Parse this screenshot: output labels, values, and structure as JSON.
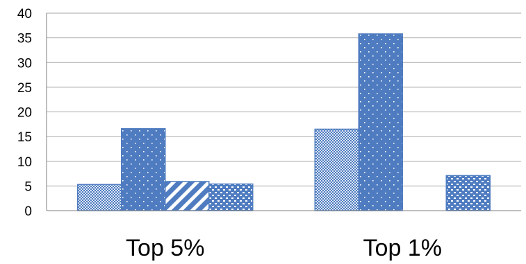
{
  "chart_data": {
    "type": "bar",
    "title": "",
    "xlabel": "",
    "ylabel": "",
    "categories": [
      "Top 5%",
      "Top 1%"
    ],
    "ylim": [
      0,
      40
    ],
    "yticks": [
      0,
      5,
      10,
      15,
      20,
      25,
      30,
      35,
      40
    ],
    "grid": true,
    "legend": "none",
    "series": [
      {
        "values": [
          5.3,
          16.5
        ],
        "pattern": "small-checker",
        "color": "#4f7cc0"
      },
      {
        "values": [
          16.6,
          35.8
        ],
        "pattern": "dots",
        "color": "#4f7cc0"
      },
      {
        "values": [
          5.9,
          null
        ],
        "pattern": "diagonal-stripes",
        "color": "#4f7cc0"
      },
      {
        "values": [
          5.4,
          7.1
        ],
        "pattern": "large-checker",
        "color": "#4f7cc0"
      }
    ]
  }
}
